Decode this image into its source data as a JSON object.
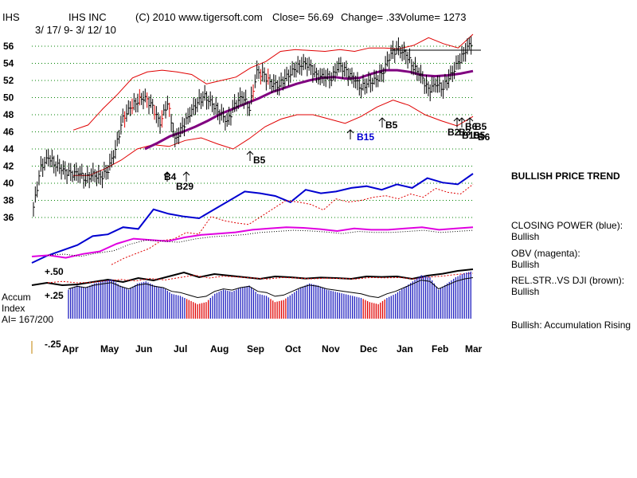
{
  "header": {
    "ticker": "IHS",
    "company": "IHS INC",
    "copyright": "(C) 2010 www.tigersoft.com",
    "close": "Close=  56.69",
    "change": "Change= .33",
    "volume": "Volume= 1273",
    "date_range": "3/ 17/ 9-  3/ 12/ 10"
  },
  "sidebar": {
    "price_trend": "BULLISH PRICE TREND",
    "closing_power_label": "CLOSING POWER (blue):",
    "closing_power_value": "Bullish",
    "obv_label": "OBV (magenta):",
    "obv_value": "Bullish",
    "relstr_label": "REL.STR..VS DJI (brown):",
    "relstr_value": "Bullish",
    "accum_status": "Bullish: Accumulation Rising"
  },
  "accum_panel": {
    "title1": "Accum",
    "title2": "Index",
    "ai": "AI= 167/200",
    "level_p50": "+.50",
    "level_p25": "+.25",
    "level_m25": "-.25"
  },
  "colors": {
    "bars": "#000000",
    "red_bars": "#e00000",
    "bands": "#e00000",
    "ma": "#800080",
    "closing_power": "#0000d0",
    "obv": "#e000e0",
    "rel_strength": "#000000",
    "accum_blue": "#2020c0",
    "accum_red": "#e00000",
    "grid": "#008000"
  },
  "chart_data": {
    "type": "line",
    "title": "IHS INC",
    "y_ticks": [
      "56",
      "54",
      "52",
      "50",
      "48",
      "46",
      "44",
      "42",
      "40",
      "38",
      "36"
    ],
    "ylim": [
      36,
      56
    ],
    "x_ticks": [
      "Apr",
      "May",
      "Jun",
      "Jul",
      "Aug",
      "Sep",
      "Oct",
      "Nov",
      "Dec",
      "Jan",
      "Feb",
      "Mar"
    ],
    "price": [
      37.2,
      41.8,
      43.0,
      42.2,
      41.5,
      41.0,
      41.3,
      40.5,
      41.0,
      40.6,
      41.6,
      44.0,
      47.5,
      48.8,
      49.7,
      50.0,
      48.8,
      47.0,
      49.5,
      45.0,
      46.5,
      48.2,
      49.5,
      50.1,
      49.2,
      48.3,
      47.2,
      49.0,
      50.2,
      48.8,
      53.0,
      52.5,
      51.6,
      51.5,
      52.4,
      53.2,
      54.0,
      53.8,
      52.4,
      52.5,
      52.3,
      53.8,
      53.0,
      52.2,
      51.2,
      51.7,
      52.0,
      53.2,
      55.2,
      55.6,
      55.0,
      53.6,
      52.6,
      50.8,
      51.6,
      51.2,
      52.6,
      54.0,
      55.6,
      56.69
    ],
    "moving_average": [
      44.0,
      44.7,
      45.5,
      46.0,
      46.6,
      47.3,
      48.1,
      48.7,
      49.3,
      49.9,
      50.6,
      51.1,
      51.6,
      52.0,
      52.3,
      52.4,
      52.2,
      52.3,
      52.8,
      53.2,
      53.2,
      53.0,
      52.6,
      52.5,
      52.6,
      52.8,
      53.1
    ],
    "upper_band": [
      46.2,
      46.8,
      48.7,
      50.4,
      52.3,
      53.0,
      53.2,
      53.0,
      52.7,
      51.6,
      52.0,
      52.4,
      53.5,
      54.2,
      55.4,
      55.6,
      55.5,
      55.4,
      55.6,
      55.4,
      55.8,
      55.8,
      55.7,
      56.1,
      57.0,
      56.3,
      55.8,
      57.4
    ],
    "lower_band": [
      40.9,
      40.9,
      41.7,
      42.7,
      44.0,
      44.5,
      44.3,
      45.0,
      45.3,
      44.6,
      44.0,
      45.2,
      46.6,
      47.5,
      48.0,
      48.0,
      47.5,
      47.0,
      47.8,
      48.9,
      49.7,
      49.1,
      48.0,
      47.3,
      46.7,
      47.8
    ],
    "signals": [
      {
        "label": "B4",
        "color": "#000000"
      },
      {
        "label": "B29",
        "color": "#000000"
      },
      {
        "label": "B5",
        "color": "#000000"
      },
      {
        "label": "B15",
        "color": "#0000d0"
      },
      {
        "label": "B5",
        "color": "#000000"
      },
      {
        "label": "B2",
        "color": "#000000"
      },
      {
        "label": "B3",
        "color": "#000000"
      },
      {
        "label": "B15",
        "color": "#000000"
      },
      {
        "label": "B5",
        "color": "#000000"
      },
      {
        "label": "B6",
        "color": "#000000"
      },
      {
        "label": "B5",
        "color": "#000000"
      },
      {
        "label": "B6",
        "color": "#000000"
      }
    ],
    "closing_power": [
      0.0,
      0.08,
      0.14,
      0.2,
      0.3,
      0.32,
      0.4,
      0.38,
      0.6,
      0.55,
      0.52,
      0.5,
      0.6,
      0.7,
      0.8,
      0.78,
      0.75,
      0.68,
      0.82,
      0.78,
      0.8,
      0.84,
      0.86,
      0.82,
      0.88,
      0.84,
      0.95,
      0.9,
      0.88,
      1.0
    ],
    "obv": [
      0.0,
      0.02,
      -0.02,
      0.04,
      0.08,
      0.2,
      0.28,
      0.26,
      0.24,
      0.3,
      0.34,
      0.36,
      0.38,
      0.42,
      0.44,
      0.46,
      0.45,
      0.43,
      0.4,
      0.44,
      0.42,
      0.42,
      0.44,
      0.46,
      0.42,
      0.44,
      0.46
    ],
    "rel_strength": [
      0.0,
      0.15,
      0.0,
      0.05,
      0.2,
      0.35,
      0.2,
      0.45,
      0.3,
      0.55,
      0.8,
      0.5,
      0.7,
      0.6,
      0.5,
      0.4,
      0.55,
      0.5,
      0.42,
      0.48,
      0.45,
      0.4,
      0.55,
      0.52,
      0.55,
      0.4,
      0.6,
      0.72,
      0.9,
      1.0
    ],
    "accum_index": [
      0.2,
      0.3,
      0.25,
      0.35,
      0.4,
      0.45,
      0.3,
      0.2,
      0.35,
      0.4,
      0.3,
      0.25,
      0.1,
      0.05,
      -0.05,
      -0.15,
      -0.1,
      0.1,
      0.2,
      0.15,
      0.25,
      0.3,
      0.1,
      0.05,
      -0.1,
      -0.05,
      0.1,
      0.25,
      0.35,
      0.3,
      0.2,
      0.15,
      0.1,
      0.05,
      0.0,
      -0.1,
      -0.15,
      0.0,
      0.1,
      0.25,
      0.4,
      0.55,
      0.5,
      0.2,
      0.35,
      0.5,
      0.6,
      0.65
    ]
  }
}
